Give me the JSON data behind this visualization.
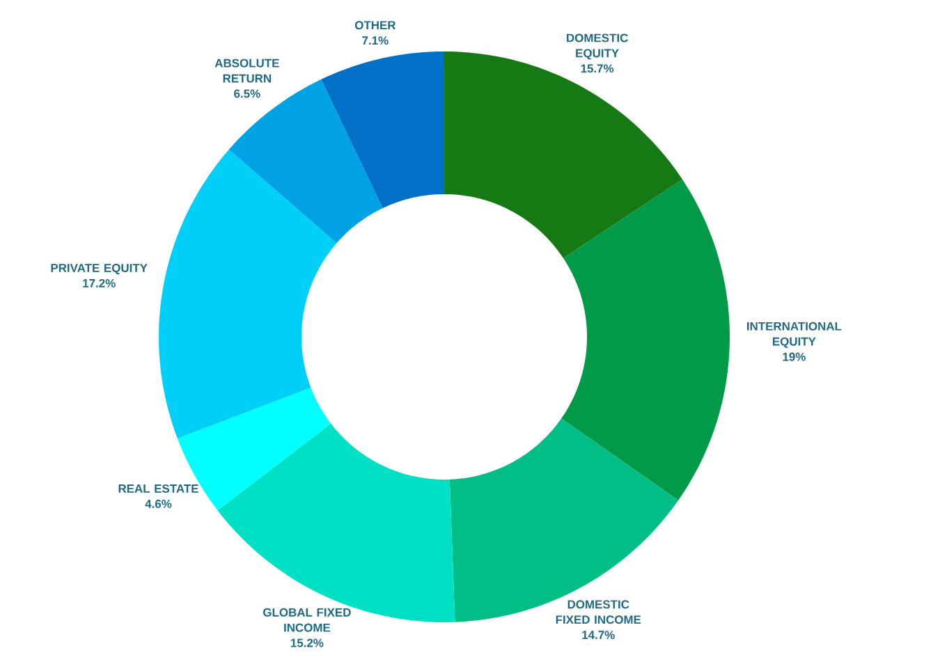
{
  "chart_data": {
    "type": "donut",
    "categories": [
      "DOMESTIC EQUITY",
      "INTERNATIONAL EQUITY",
      "DOMESTIC FIXED INCOME",
      "GLOBAL FIXED INCOME",
      "REAL ESTATE",
      "PRIVATE EQUITY",
      "ABSOLUTE RETURN",
      "OTHER"
    ],
    "values": [
      15.7,
      19,
      14.7,
      15.2,
      4.6,
      17.2,
      6.5,
      7.1
    ],
    "value_labels": [
      "15.7%",
      "19%",
      "14.7%",
      "15.2%",
      "4.6%",
      "17.2%",
      "6.5%",
      "7.1%"
    ],
    "colors": [
      "#167a14",
      "#009a48",
      "#00be86",
      "#00e0c4",
      "#00ffff",
      "#00d0f8",
      "#00a2e6",
      "#0070c8"
    ]
  }
}
